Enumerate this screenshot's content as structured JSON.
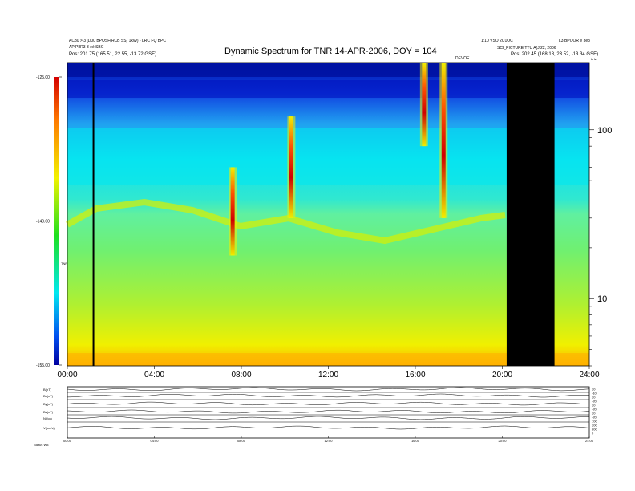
{
  "header": {
    "left_lines": [
      "AC30 > 3 [D00 BPOSF(RCB SS) 1kvv) - LRC FQ BPC",
      "AP[P8R3 3 eé SBC",
      "Pos:   201.75 (165.51, 22.55, -13.72 GSE)"
    ],
    "right_lines": [
      "1:10 VSO 2U1OC",
      "SCI_PICTURE TTU A(J 22, 2006",
      "Pos:   202.45 (168.18, 23.52, -13.34 GSE)"
    ],
    "far_right": "L3 BPOOR e 3e3",
    "center_marker": "DEVOE"
  },
  "chart_data": {
    "type": "heatmap",
    "title": "Dynamic Spectrum for TNR 14-APR-2006, DOY = 104",
    "colorbar": {
      "ticks": [
        "-125.00",
        "-140.00",
        "-155.00"
      ],
      "values": [
        -125,
        -140,
        -155
      ],
      "label": "TNR"
    },
    "x_ticks": [
      "00:00",
      "04:00",
      "08:00",
      "12:00",
      "16:00",
      "20:00",
      "24:00"
    ],
    "x_hours": [
      0,
      4,
      8,
      12,
      16,
      20,
      24
    ],
    "y_ticks": [
      "100",
      "10"
    ],
    "y_values": [
      100,
      10
    ],
    "y_unit": "kHz",
    "xlim": [
      0,
      24
    ],
    "ylim": [
      4,
      250
    ],
    "y_scale": "log",
    "data_gap_hours": [
      20.2,
      22.4
    ],
    "vertical_marker_hour": 1.2,
    "bursts": [
      {
        "hour": 7.6,
        "freq_low": 18,
        "freq_high": 60
      },
      {
        "hour": 10.3,
        "freq_low": 30,
        "freq_high": 120
      },
      {
        "hour": 17.3,
        "freq_low": 30,
        "freq_high": 250
      },
      {
        "hour": 16.4,
        "freq_low": 80,
        "freq_high": 250
      }
    ]
  },
  "bottom_panels": {
    "labels": [
      "B(nT)",
      "Bx(nT)",
      "By(nT)",
      "Bz(nT)",
      "N(/cc)",
      "V(km/s)"
    ],
    "x_ticks": [
      "00:00",
      "04:00",
      "08:00",
      "12:00",
      "16:00",
      "20:00",
      "24:00"
    ],
    "right_ticks": [
      "20",
      "-10",
      "20",
      "-20",
      "20",
      "-20",
      "20",
      "-20",
      "100",
      "200",
      "800",
      "0"
    ],
    "footer": "Status   W3"
  },
  "colors": {
    "gap": "#000000",
    "background_low": "#e8f000"
  }
}
